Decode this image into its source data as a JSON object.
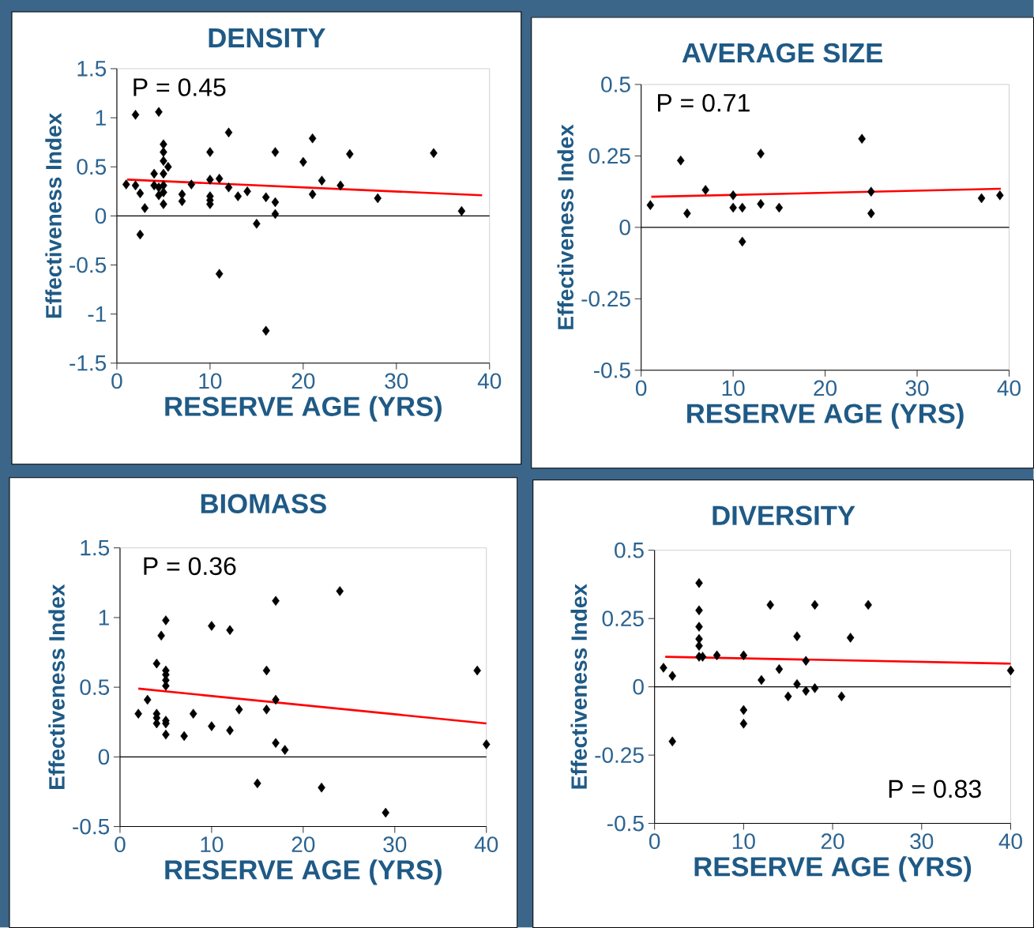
{
  "chart_data": [
    {
      "type": "scatter",
      "title": "DENSITY",
      "xlabel": "RESERVE AGE (YRS)",
      "ylabel": "Effectiveness Index",
      "annotations": [
        "P = 0.45"
      ],
      "xlim": [
        0,
        40
      ],
      "xticks": [
        0,
        10,
        20,
        30,
        40
      ],
      "ylim": [
        -1.5,
        1.5
      ],
      "yticks": [
        -1.5,
        -1,
        -0.5,
        0,
        0.5,
        1,
        1.5
      ],
      "ref_lines": [
        {
          "axis": "y",
          "value": 0,
          "color": "#000000"
        }
      ],
      "series": [
        {
          "marker": "diamond",
          "color": "#000000",
          "x": [
            1,
            2,
            2,
            2.5,
            3,
            2.5,
            4,
            4,
            4.5,
            4.5,
            4.5,
            5,
            5,
            5,
            5,
            5,
            5,
            5,
            5.5,
            7,
            7,
            8,
            10,
            10,
            10,
            10,
            10,
            11,
            11,
            12,
            12,
            13,
            14,
            15,
            16,
            16,
            17,
            17,
            17,
            20,
            21,
            21,
            22,
            24,
            25,
            28,
            34,
            37
          ],
          "values": [
            0.32,
            1.03,
            0.31,
            0.23,
            0.08,
            -0.19,
            0.43,
            0.31,
            1.06,
            0.29,
            0.21,
            0.73,
            0.65,
            0.56,
            0.43,
            0.31,
            0.24,
            0.12,
            0.5,
            0.22,
            0.15,
            0.32,
            0.65,
            0.37,
            0.2,
            0.16,
            0.12,
            0.38,
            -0.59,
            0.85,
            0.29,
            0.2,
            0.25,
            -0.08,
            0.19,
            -1.17,
            0.65,
            0.14,
            0.02,
            0.55,
            0.79,
            0.22,
            0.36,
            0.31,
            0.63,
            0.18,
            0.64,
            0.05
          ]
        },
        {
          "type": "line",
          "marker": "none",
          "color": "#ff0000",
          "x": [
            1.1,
            39.2
          ],
          "values": [
            0.37,
            0.21
          ]
        }
      ]
    },
    {
      "type": "scatter",
      "title": "AVERAGE SIZE",
      "xlabel": "RESERVE AGE (YRS)",
      "ylabel": "Effectiveness Index",
      "annotations": [
        "P = 0.71"
      ],
      "xlim": [
        0,
        40
      ],
      "xticks": [
        0,
        10,
        20,
        30,
        40
      ],
      "ylim": [
        -0.5,
        0.5
      ],
      "yticks": [
        -0.5,
        -0.25,
        0,
        0.25,
        0.5
      ],
      "ref_lines": [
        {
          "axis": "y",
          "value": 0,
          "color": "#000000"
        }
      ],
      "series": [
        {
          "marker": "diamond",
          "color": "#000000",
          "x": [
            1,
            4.3,
            5,
            7,
            10,
            10,
            11,
            11,
            13,
            13,
            15,
            24,
            25,
            25,
            37,
            39
          ],
          "values": [
            0.078,
            0.234,
            0.049,
            0.131,
            0.112,
            0.069,
            0.069,
            -0.05,
            0.258,
            0.082,
            0.069,
            0.31,
            0.125,
            0.049,
            0.102,
            0.112
          ]
        },
        {
          "type": "line",
          "marker": "none",
          "color": "#ff0000",
          "x": [
            1.1,
            39.1
          ],
          "values": [
            0.107,
            0.135
          ]
        }
      ]
    },
    {
      "type": "scatter",
      "title": "BIOMASS",
      "xlabel": "RESERVE AGE (YRS)",
      "ylabel": "Effectiveness Index",
      "annotations": [
        "P = 0.36"
      ],
      "xlim": [
        0,
        40
      ],
      "xticks": [
        0,
        10,
        20,
        30,
        40
      ],
      "ylim": [
        -0.5,
        1.5
      ],
      "yticks": [
        -0.5,
        0,
        0.5,
        1,
        1.5
      ],
      "ref_lines": [
        {
          "axis": "y",
          "value": 0,
          "color": "#000000"
        }
      ],
      "series": [
        {
          "marker": "diamond",
          "color": "#000000",
          "x": [
            2,
            3,
            4,
            4,
            4,
            4,
            4.5,
            5,
            5,
            5,
            5,
            5,
            5,
            5,
            5,
            7,
            8,
            10,
            10,
            12,
            12,
            13,
            15,
            16,
            16,
            17,
            17,
            17,
            18,
            22,
            24,
            29,
            39,
            40
          ],
          "values": [
            0.31,
            0.41,
            0.67,
            0.31,
            0.28,
            0.24,
            0.87,
            0.98,
            0.62,
            0.59,
            0.55,
            0.51,
            0.26,
            0.24,
            0.16,
            0.15,
            0.31,
            0.94,
            0.22,
            0.91,
            0.19,
            0.34,
            -0.19,
            0.62,
            0.34,
            1.12,
            0.41,
            0.1,
            0.05,
            -0.22,
            1.19,
            -0.4,
            0.62,
            0.09
          ]
        },
        {
          "type": "line",
          "marker": "none",
          "color": "#ff0000",
          "x": [
            2,
            40
          ],
          "values": [
            0.49,
            0.24
          ]
        }
      ]
    },
    {
      "type": "scatter",
      "title": "DIVERSITY",
      "xlabel": "RESERVE AGE (YRS)",
      "ylabel": "Effectiveness Index",
      "annotations": [
        "P = 0.83"
      ],
      "xlim": [
        0,
        40
      ],
      "xticks": [
        0,
        10,
        20,
        30,
        40
      ],
      "ylim": [
        -0.5,
        0.5
      ],
      "yticks": [
        -0.5,
        -0.25,
        0,
        0.25,
        0.5
      ],
      "ref_lines": [
        {
          "axis": "y",
          "value": 0,
          "color": "#000000"
        }
      ],
      "series": [
        {
          "marker": "diamond",
          "color": "#000000",
          "x": [
            1,
            2,
            2,
            5,
            5,
            5,
            5,
            5,
            5,
            5.4,
            7,
            10,
            10,
            10,
            12,
            13,
            14,
            15,
            16,
            16,
            17,
            17,
            18,
            18,
            21,
            22,
            24,
            40
          ],
          "values": [
            0.07,
            0.04,
            -0.2,
            0.38,
            0.28,
            0.22,
            0.175,
            0.15,
            0.11,
            0.11,
            0.115,
            0.115,
            -0.085,
            -0.135,
            0.025,
            0.3,
            0.065,
            -0.035,
            0.185,
            0.01,
            0.095,
            -0.015,
            0.3,
            -0.005,
            -0.035,
            0.18,
            0.3,
            0.06
          ]
        },
        {
          "type": "line",
          "marker": "none",
          "color": "#ff0000",
          "x": [
            1.2,
            40
          ],
          "values": [
            0.11,
            0.085
          ]
        }
      ]
    }
  ]
}
